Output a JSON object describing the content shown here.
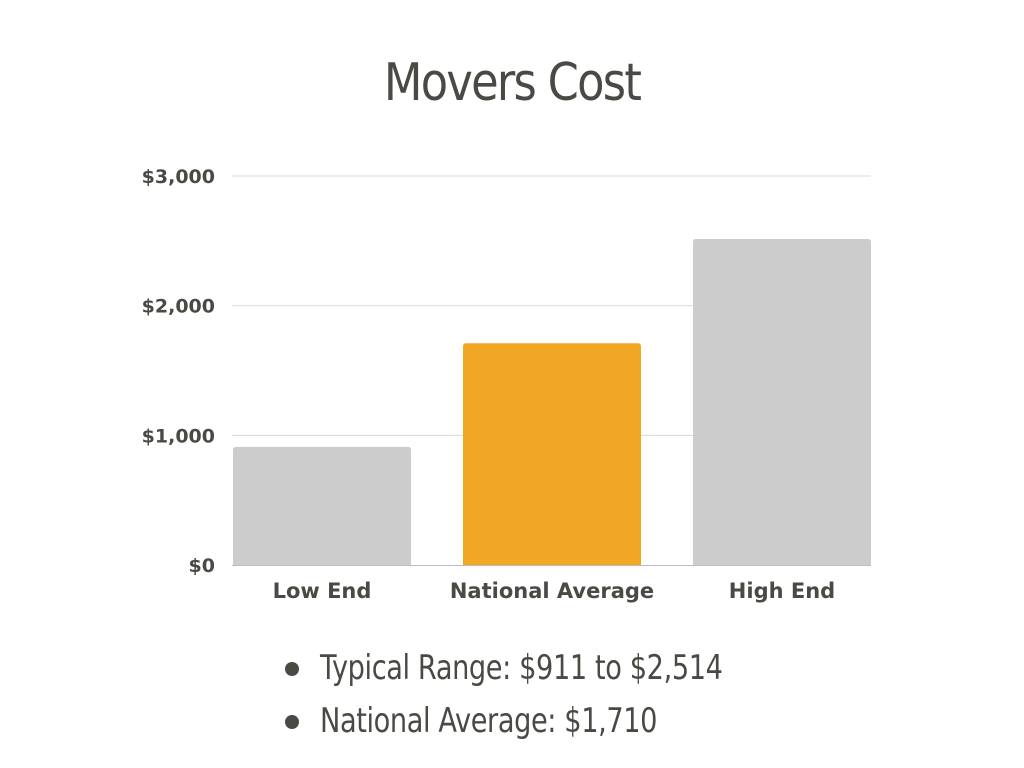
{
  "chart_data": {
    "type": "bar",
    "title": "Movers Cost",
    "categories": [
      "Low End",
      "National Average",
      "High End"
    ],
    "values": [
      911,
      1710,
      2514
    ],
    "colors": [
      "#cccccc",
      "#f2a724",
      "#cccccc"
    ],
    "ylim": [
      0,
      3000
    ],
    "yticks": [
      0,
      1000,
      2000,
      3000
    ],
    "ytick_labels": [
      "$0",
      "$1,000",
      "$2,000",
      "$3,000"
    ],
    "grid": true,
    "xlabel": "",
    "ylabel": ""
  },
  "summary": {
    "items": [
      "Typical Range: $911 to $2,514",
      "National Average: $1,710"
    ]
  }
}
